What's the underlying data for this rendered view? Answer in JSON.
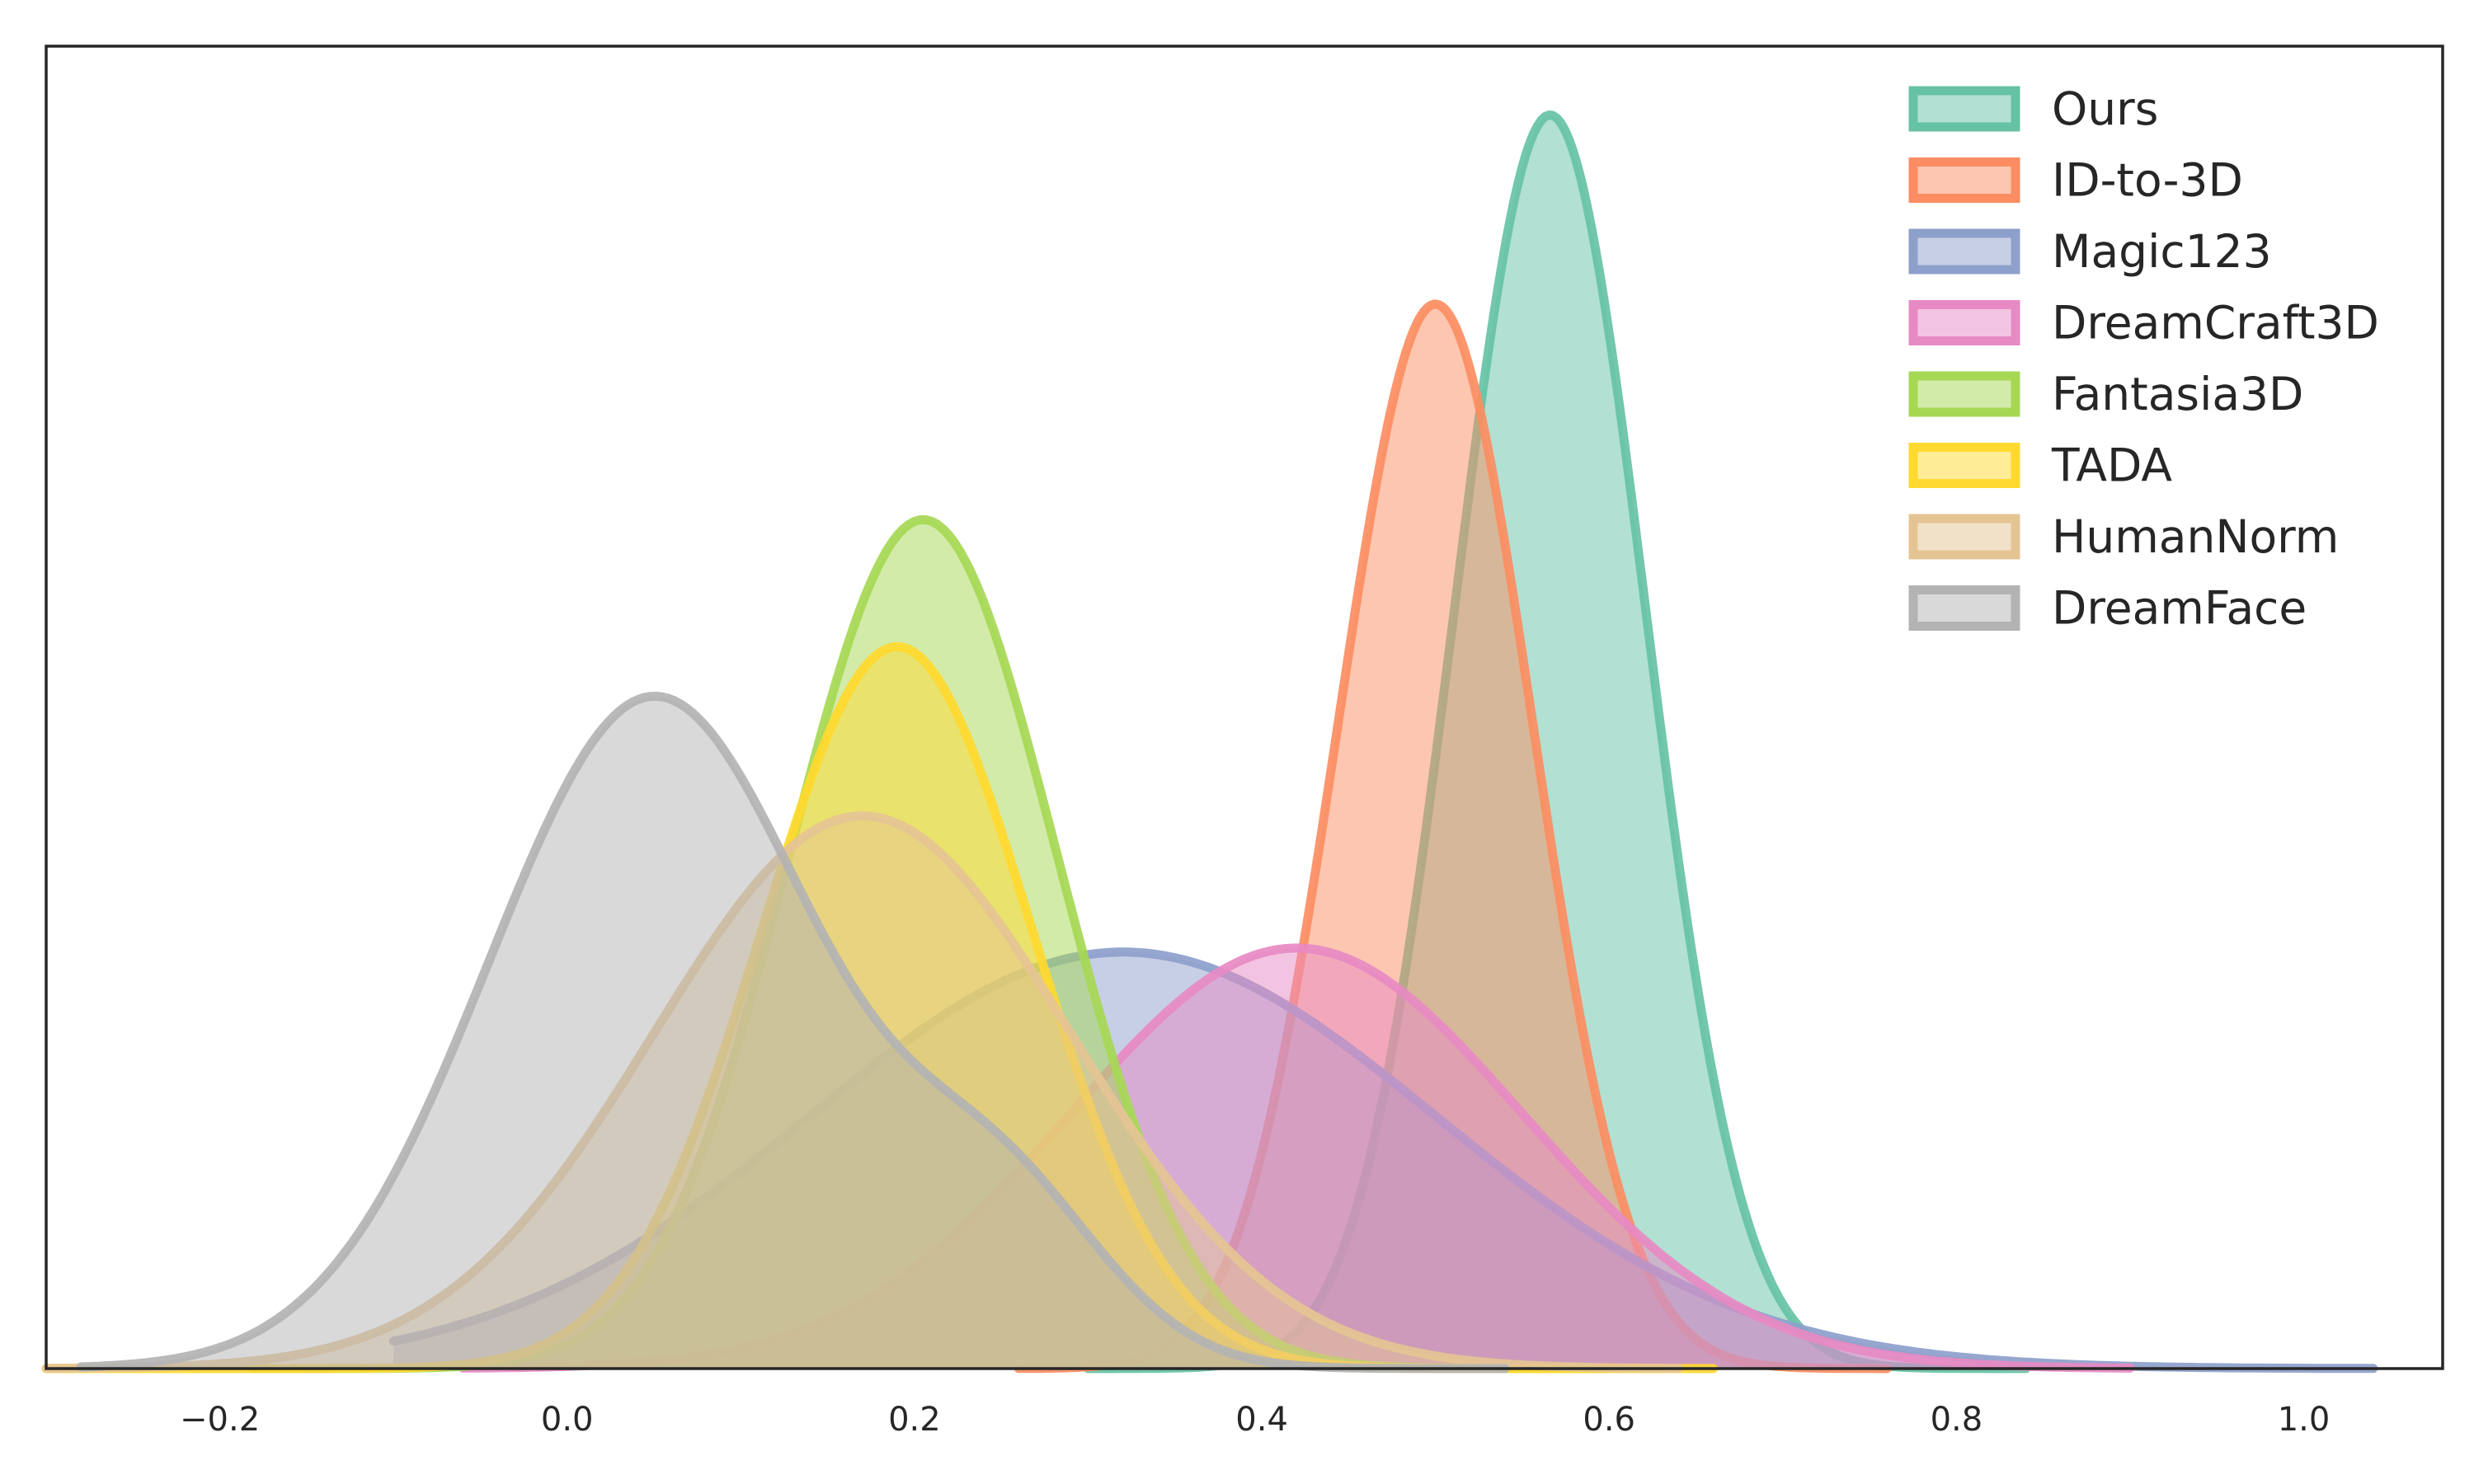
{
  "chart_data": {
    "type": "area",
    "subtype": "kde",
    "title": "",
    "xlabel": "",
    "ylabel": "",
    "xlim": [
      -0.3,
      1.08
    ],
    "ylim": [
      0,
      1
    ],
    "grid": false,
    "legend_position": "top-right",
    "x_ticks": [
      "−0.2",
      "0.0",
      "0.2",
      "0.4",
      "0.6",
      "0.8",
      "1.0"
    ],
    "x_tick_values": [
      -0.2,
      0.0,
      0.2,
      0.4,
      0.6,
      0.8,
      1.0
    ],
    "series": [
      {
        "name": "Ours",
        "color": "#66c2a5",
        "x_range": [
          0.3,
          0.84
        ],
        "components": [
          {
            "mean": 0.566,
            "sd": 0.055,
            "height": 0.948
          }
        ]
      },
      {
        "name": "ID-to-3D",
        "color": "#fc8d62",
        "x_range": [
          0.26,
          0.76
        ],
        "components": [
          {
            "mean": 0.5,
            "sd": 0.056,
            "height": 0.805
          }
        ]
      },
      {
        "name": "Magic123",
        "color": "#8da0cb",
        "x_range": [
          -0.1,
          1.04
        ],
        "components": [
          {
            "mean": 0.32,
            "sd": 0.18,
            "height": 0.315
          }
        ]
      },
      {
        "name": "DreamCraft3D",
        "color": "#e78ac3",
        "x_range": [
          -0.06,
          0.9
        ],
        "components": [
          {
            "mean": 0.42,
            "sd": 0.13,
            "height": 0.318
          }
        ]
      },
      {
        "name": "Fantasia3D",
        "color": "#a6d854",
        "x_range": [
          -0.18,
          0.6
        ],
        "components": [
          {
            "mean": 0.205,
            "sd": 0.077,
            "height": 0.642
          }
        ]
      },
      {
        "name": "TADA",
        "color": "#ffd92f",
        "x_range": [
          -0.3,
          0.66
        ],
        "components": [
          {
            "mean": 0.19,
            "sd": 0.078,
            "height": 0.546
          }
        ]
      },
      {
        "name": "HumanNorm",
        "color": "#e5c494",
        "x_range": [
          -0.3,
          0.64
        ],
        "components": [
          {
            "mean": 0.17,
            "sd": 0.12,
            "height": 0.418
          }
        ]
      },
      {
        "name": "DreamFace",
        "color": "#b3b3b3",
        "x_range": [
          -0.28,
          0.54
        ],
        "components": [
          {
            "mean": 0.05,
            "sd": 0.095,
            "height": 0.508
          },
          {
            "mean": 0.25,
            "sd": 0.06,
            "height": 0.12
          }
        ]
      }
    ]
  }
}
